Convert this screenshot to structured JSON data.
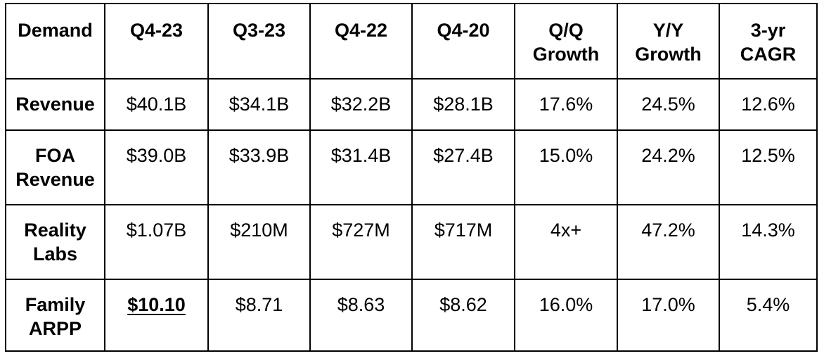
{
  "table": {
    "headers": [
      "Demand",
      "Q4-23",
      "Q3-23",
      "Q4-22",
      "Q4-20",
      "Q/Q\nGrowth",
      "Y/Y\nGrowth",
      "3-yr\nCAGR"
    ],
    "rows": [
      {
        "label": "Revenue",
        "values": [
          "$40.1B",
          "$34.1B",
          "$32.2B",
          "$28.1B",
          "17.6%",
          "24.5%",
          "12.6%"
        ]
      },
      {
        "label": "FOA\nRevenue",
        "values": [
          "$39.0B",
          "$33.9B",
          "$31.4B",
          "$27.4B",
          "15.0%",
          "24.2%",
          "12.5%"
        ]
      },
      {
        "label": "Reality\nLabs",
        "values": [
          "$1.07B",
          "$210M",
          "$727M",
          "$717M",
          "4x+",
          "47.2%",
          "14.3%"
        ]
      },
      {
        "label": "Family\nARPP",
        "values": [
          "$10.10",
          "$8.71",
          "$8.63",
          "$8.62",
          "16.0%",
          "17.0%",
          "5.4%"
        ]
      }
    ]
  }
}
